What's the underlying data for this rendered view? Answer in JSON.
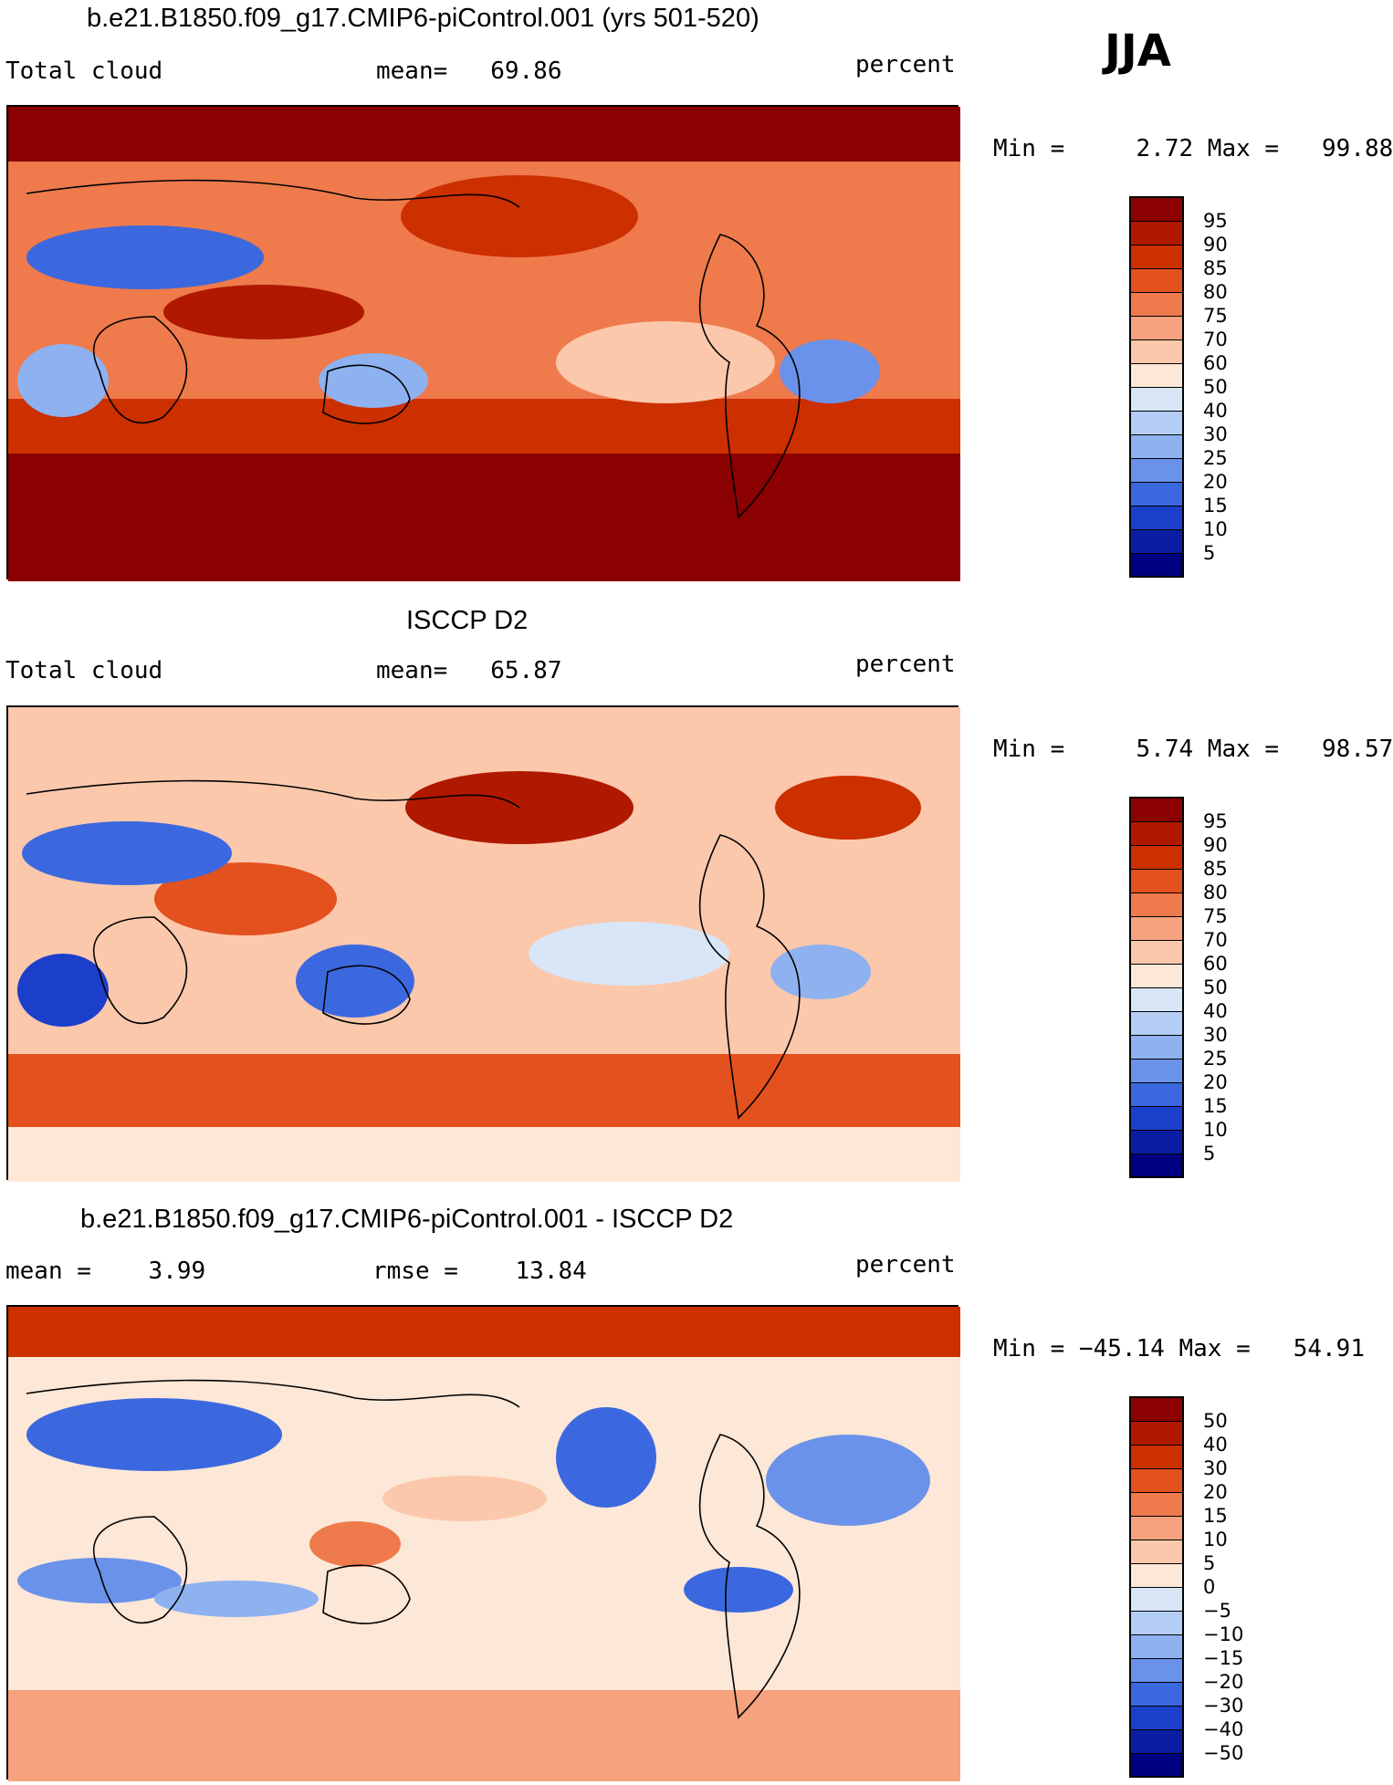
{
  "season": "JJA",
  "panels": [
    {
      "title": "b.e21.B1850.f09_g17.CMIP6-piControl.001 (yrs 501-520)",
      "left": "Total cloud",
      "center": "mean=   69.86",
      "units": "percent",
      "minmax": "Min =     2.72 Max =   99.88",
      "levels": [
        "95",
        "90",
        "85",
        "80",
        "75",
        "70",
        "60",
        "50",
        "40",
        "30",
        "25",
        "20",
        "15",
        "10",
        "5"
      ],
      "colors": [
        "#8b0000",
        "#b01900",
        "#cc2f00",
        "#e3511e",
        "#ef7a4c",
        "#f6a27f",
        "#fbc8ac",
        "#fde7d7",
        "#d8e6f7",
        "#b3cdf5",
        "#8eb1f0",
        "#6a92ea",
        "#3c68df",
        "#1c3fcb",
        "#0a1ea3",
        "#000080"
      ]
    },
    {
      "title": "ISCCP D2",
      "left": "Total cloud",
      "center": "mean=   65.87",
      "units": "percent",
      "minmax": "Min =     5.74 Max =   98.57",
      "levels": [
        "95",
        "90",
        "85",
        "80",
        "75",
        "70",
        "60",
        "50",
        "40",
        "30",
        "25",
        "20",
        "15",
        "10",
        "5"
      ],
      "colors": [
        "#8b0000",
        "#b01900",
        "#cc2f00",
        "#e3511e",
        "#ef7a4c",
        "#f6a27f",
        "#fbc8ac",
        "#fde7d7",
        "#d8e6f7",
        "#b3cdf5",
        "#8eb1f0",
        "#6a92ea",
        "#3c68df",
        "#1c3fcb",
        "#0a1ea3",
        "#000080"
      ]
    },
    {
      "title": "b.e21.B1850.f09_g17.CMIP6-piControl.001 - ISCCP D2",
      "left": "mean =    3.99",
      "center": "rmse =    13.84",
      "units": "percent",
      "minmax": "Min = −45.14 Max =   54.91",
      "levels": [
        "50",
        "40",
        "30",
        "20",
        "15",
        "10",
        "5",
        "0",
        "−5",
        "−10",
        "−15",
        "−20",
        "−30",
        "−40",
        "−50"
      ],
      "colors": [
        "#8b0000",
        "#b01900",
        "#cc2f00",
        "#e3511e",
        "#ef7a4c",
        "#f6a27f",
        "#fbc8ac",
        "#fde7d7",
        "#d8e6f7",
        "#b3cdf5",
        "#8eb1f0",
        "#6a92ea",
        "#3c68df",
        "#1c3fcb",
        "#0a1ea3",
        "#000080"
      ]
    }
  ]
}
